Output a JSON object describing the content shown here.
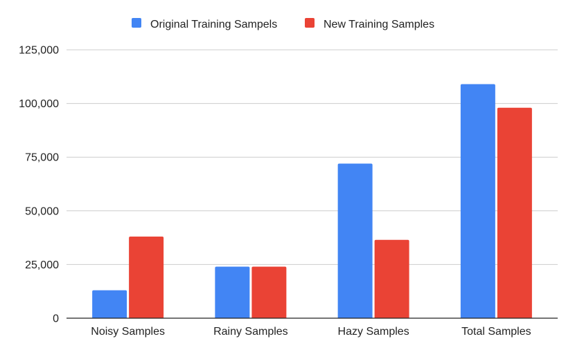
{
  "chart_data": {
    "type": "bar",
    "title": "",
    "xlabel": "",
    "ylabel": "",
    "categories": [
      "Noisy Samples",
      "Rainy Samples",
      "Hazy Samples",
      "Total Samples"
    ],
    "series": [
      {
        "name": "Original Training Sampels",
        "color": "#4285f4",
        "values": [
          13000,
          24000,
          72000,
          109000
        ]
      },
      {
        "name": "New Training Samples",
        "color": "#ea4335",
        "values": [
          38000,
          24000,
          36500,
          98000
        ]
      }
    ],
    "ylim": [
      0,
      125000
    ],
    "yticks": [
      0,
      25000,
      50000,
      75000,
      100000,
      125000
    ],
    "ytick_labels": [
      "0",
      "25,000",
      "50,000",
      "75,000",
      "100,000",
      "125,000"
    ],
    "grid": true,
    "legend_position": "top-center"
  }
}
